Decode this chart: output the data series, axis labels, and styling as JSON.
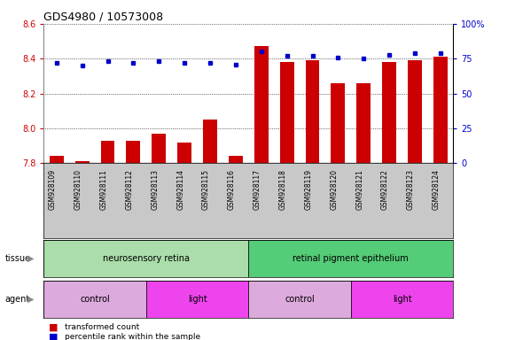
{
  "title": "GDS4980 / 10573008",
  "samples": [
    "GSM928109",
    "GSM928110",
    "GSM928111",
    "GSM928112",
    "GSM928113",
    "GSM928114",
    "GSM928115",
    "GSM928116",
    "GSM928117",
    "GSM928118",
    "GSM928119",
    "GSM928120",
    "GSM928121",
    "GSM928122",
    "GSM928123",
    "GSM928124"
  ],
  "red_values": [
    7.84,
    7.81,
    7.93,
    7.93,
    7.97,
    7.92,
    8.05,
    7.84,
    8.47,
    8.38,
    8.39,
    8.26,
    8.26,
    8.38,
    8.39,
    8.41
  ],
  "blue_values": [
    72,
    70,
    73,
    72,
    73,
    72,
    72,
    71,
    80,
    77,
    77,
    76,
    75,
    78,
    79,
    79
  ],
  "ylim_left": [
    7.8,
    8.6
  ],
  "ylim_right": [
    0,
    100
  ],
  "yticks_left": [
    7.8,
    8.0,
    8.2,
    8.4,
    8.6
  ],
  "yticks_right": [
    0,
    25,
    50,
    75,
    100
  ],
  "ytick_labels_right": [
    "0",
    "25",
    "50",
    "75",
    "100%"
  ],
  "tissue_groups": [
    {
      "label": "neurosensory retina",
      "start": 0,
      "end": 8,
      "color": "#aaddaa"
    },
    {
      "label": "retinal pigment epithelium",
      "start": 8,
      "end": 16,
      "color": "#55cc77"
    }
  ],
  "agent_groups": [
    {
      "label": "control",
      "start": 0,
      "end": 4,
      "color": "#ddaadd"
    },
    {
      "label": "light",
      "start": 4,
      "end": 8,
      "color": "#ee44ee"
    },
    {
      "label": "control",
      "start": 8,
      "end": 12,
      "color": "#ddaadd"
    },
    {
      "label": "light",
      "start": 12,
      "end": 16,
      "color": "#ee44ee"
    }
  ],
  "red_color": "#CC0000",
  "blue_color": "#0000CC",
  "bar_bottom": 7.8,
  "grid_color": "black",
  "bg_color": "#FFFFFF",
  "tick_color_left": "#CC0000",
  "tick_color_right": "#0000CC",
  "xtick_bg": "#C8C8C8"
}
